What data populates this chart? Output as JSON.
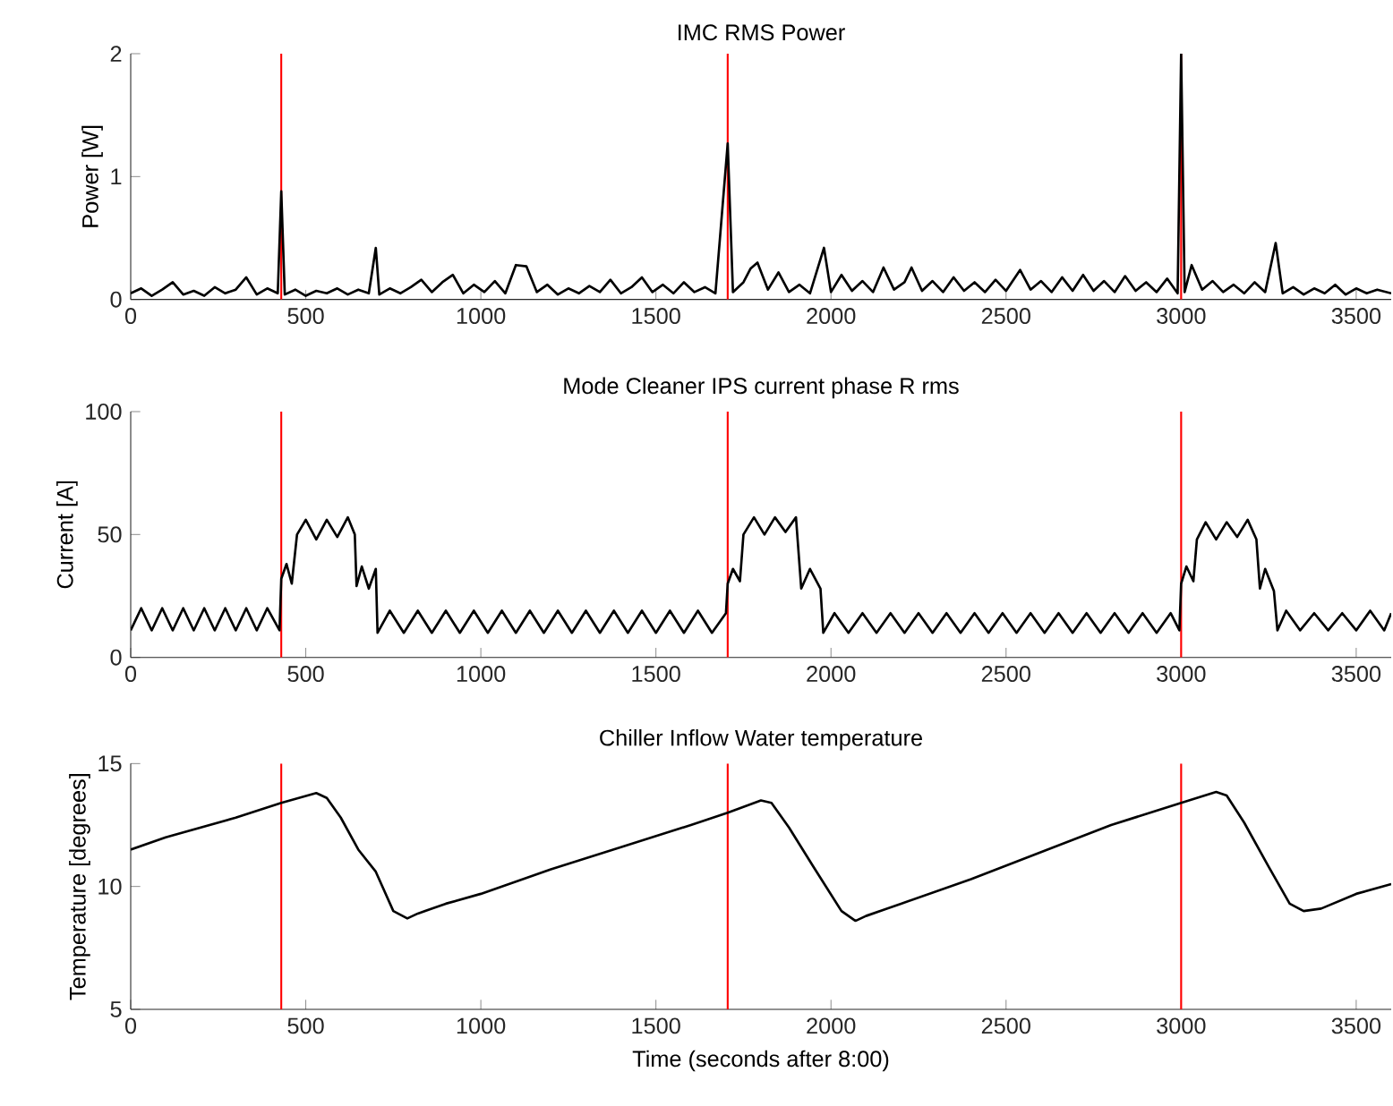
{
  "chart_data": [
    {
      "type": "line",
      "title": "IMC RMS Power",
      "ylabel": "Power [W]",
      "xlim": [
        0,
        3600
      ],
      "ylim": [
        0,
        2
      ],
      "xticks": [
        0,
        500,
        1000,
        1500,
        2000,
        2500,
        3000,
        3500
      ],
      "yticks": [
        0,
        1,
        2
      ],
      "x": [
        0,
        30,
        60,
        90,
        120,
        150,
        180,
        210,
        240,
        270,
        300,
        330,
        360,
        390,
        420,
        430,
        440,
        470,
        500,
        530,
        560,
        590,
        620,
        650,
        680,
        700,
        710,
        740,
        770,
        800,
        830,
        860,
        890,
        920,
        950,
        980,
        1010,
        1040,
        1070,
        1100,
        1130,
        1160,
        1190,
        1220,
        1250,
        1280,
        1310,
        1340,
        1370,
        1400,
        1430,
        1460,
        1490,
        1520,
        1550,
        1580,
        1610,
        1640,
        1670,
        1705,
        1720,
        1750,
        1770,
        1790,
        1820,
        1850,
        1880,
        1910,
        1940,
        1980,
        2000,
        2030,
        2060,
        2090,
        2120,
        2150,
        2180,
        2210,
        2230,
        2260,
        2290,
        2320,
        2350,
        2380,
        2410,
        2440,
        2470,
        2500,
        2540,
        2570,
        2600,
        2630,
        2660,
        2690,
        2720,
        2750,
        2780,
        2810,
        2840,
        2870,
        2900,
        2930,
        2960,
        2990,
        3000,
        3010,
        3030,
        3060,
        3090,
        3120,
        3150,
        3180,
        3210,
        3240,
        3270,
        3290,
        3320,
        3350,
        3380,
        3410,
        3440,
        3470,
        3500,
        3530,
        3560,
        3600
      ],
      "series": [
        {
          "color": "#000000",
          "values": [
            0.05,
            0.09,
            0.03,
            0.08,
            0.14,
            0.04,
            0.07,
            0.03,
            0.1,
            0.05,
            0.08,
            0.18,
            0.04,
            0.09,
            0.05,
            0.88,
            0.04,
            0.08,
            0.03,
            0.07,
            0.05,
            0.09,
            0.04,
            0.08,
            0.05,
            0.42,
            0.04,
            0.09,
            0.05,
            0.1,
            0.16,
            0.06,
            0.14,
            0.2,
            0.05,
            0.12,
            0.06,
            0.15,
            0.05,
            0.28,
            0.27,
            0.06,
            0.12,
            0.04,
            0.09,
            0.05,
            0.11,
            0.06,
            0.16,
            0.05,
            0.1,
            0.18,
            0.06,
            0.12,
            0.05,
            0.14,
            0.06,
            0.1,
            0.05,
            1.27,
            0.06,
            0.14,
            0.25,
            0.3,
            0.08,
            0.22,
            0.06,
            0.12,
            0.05,
            0.42,
            0.06,
            0.2,
            0.07,
            0.15,
            0.06,
            0.26,
            0.08,
            0.14,
            0.26,
            0.07,
            0.15,
            0.06,
            0.18,
            0.07,
            0.14,
            0.06,
            0.16,
            0.07,
            0.24,
            0.08,
            0.15,
            0.06,
            0.18,
            0.07,
            0.2,
            0.07,
            0.15,
            0.06,
            0.19,
            0.07,
            0.14,
            0.06,
            0.17,
            0.05,
            2.0,
            0.06,
            0.28,
            0.08,
            0.15,
            0.06,
            0.12,
            0.05,
            0.14,
            0.06,
            0.46,
            0.05,
            0.1,
            0.04,
            0.09,
            0.05,
            0.12,
            0.04,
            0.09,
            0.05,
            0.08,
            0.05
          ]
        }
      ],
      "ref_lines": [
        {
          "axis": "x",
          "value": 430,
          "color": "#ff0000"
        },
        {
          "axis": "x",
          "value": 1705,
          "color": "#ff0000"
        },
        {
          "axis": "x",
          "value": 3000,
          "color": "#ff0000"
        }
      ]
    },
    {
      "type": "line",
      "title": "Mode Cleaner IPS current phase R rms",
      "ylabel": "Current [A]",
      "xlim": [
        0,
        3600
      ],
      "ylim": [
        0,
        100
      ],
      "xticks": [
        0,
        500,
        1000,
        1500,
        2000,
        2500,
        3000,
        3500
      ],
      "yticks": [
        0,
        50,
        100
      ],
      "x": [
        0,
        30,
        60,
        90,
        120,
        150,
        180,
        210,
        240,
        270,
        300,
        330,
        360,
        390,
        425,
        430,
        445,
        460,
        475,
        500,
        530,
        560,
        590,
        620,
        640,
        645,
        660,
        680,
        700,
        705,
        740,
        780,
        820,
        860,
        900,
        940,
        980,
        1020,
        1060,
        1100,
        1140,
        1180,
        1220,
        1260,
        1300,
        1340,
        1380,
        1420,
        1460,
        1500,
        1540,
        1580,
        1620,
        1660,
        1700,
        1705,
        1720,
        1740,
        1750,
        1780,
        1810,
        1840,
        1870,
        1900,
        1915,
        1940,
        1970,
        1978,
        2010,
        2050,
        2090,
        2130,
        2170,
        2210,
        2250,
        2290,
        2330,
        2370,
        2410,
        2450,
        2490,
        2530,
        2570,
        2610,
        2650,
        2690,
        2730,
        2770,
        2810,
        2850,
        2890,
        2930,
        2970,
        2995,
        3000,
        3015,
        3035,
        3045,
        3070,
        3100,
        3130,
        3160,
        3190,
        3215,
        3225,
        3240,
        3265,
        3275,
        3300,
        3340,
        3380,
        3420,
        3460,
        3500,
        3540,
        3580,
        3600
      ],
      "series": [
        {
          "color": "#000000",
          "values": [
            11,
            20,
            11,
            20,
            11,
            20,
            11,
            20,
            11,
            20,
            11,
            20,
            11,
            20,
            11,
            32,
            38,
            30,
            50,
            56,
            48,
            56,
            49,
            57,
            50,
            29,
            37,
            28,
            36,
            10,
            19,
            10,
            19,
            10,
            19,
            10,
            19,
            10,
            19,
            10,
            19,
            10,
            19,
            10,
            19,
            10,
            19,
            10,
            19,
            10,
            19,
            10,
            19,
            10,
            18,
            30,
            36,
            31,
            50,
            57,
            50,
            57,
            51,
            57,
            28,
            36,
            28,
            10,
            18,
            10,
            18,
            10,
            18,
            10,
            18,
            10,
            18,
            10,
            18,
            10,
            18,
            10,
            18,
            10,
            18,
            10,
            18,
            10,
            18,
            10,
            18,
            10,
            18,
            11,
            30,
            37,
            31,
            48,
            55,
            48,
            55,
            49,
            56,
            48,
            28,
            36,
            27,
            11,
            19,
            11,
            18,
            11,
            18,
            11,
            19,
            11,
            18
          ]
        }
      ],
      "ref_lines": [
        {
          "axis": "x",
          "value": 430,
          "color": "#ff0000"
        },
        {
          "axis": "x",
          "value": 1705,
          "color": "#ff0000"
        },
        {
          "axis": "x",
          "value": 3000,
          "color": "#ff0000"
        }
      ]
    },
    {
      "type": "line",
      "title": "Chiller Inflow Water temperature",
      "xlabel": "Time (seconds after 8:00)",
      "ylabel": "Temperature [degrees]",
      "xlim": [
        0,
        3600
      ],
      "ylim": [
        5,
        15
      ],
      "xticks": [
        0,
        500,
        1000,
        1500,
        2000,
        2500,
        3000,
        3500
      ],
      "yticks": [
        5,
        10,
        15
      ],
      "x": [
        0,
        100,
        200,
        300,
        430,
        530,
        560,
        600,
        650,
        700,
        750,
        790,
        820,
        900,
        1000,
        1200,
        1400,
        1600,
        1705,
        1800,
        1830,
        1880,
        1950,
        2030,
        2070,
        2100,
        2200,
        2400,
        2600,
        2800,
        3000,
        3100,
        3130,
        3180,
        3250,
        3310,
        3350,
        3400,
        3500,
        3600
      ],
      "series": [
        {
          "color": "#000000",
          "values": [
            11.5,
            12.0,
            12.4,
            12.8,
            13.4,
            13.8,
            13.6,
            12.8,
            11.5,
            10.6,
            9.0,
            8.7,
            8.9,
            9.3,
            9.7,
            10.7,
            11.6,
            12.5,
            13.0,
            13.5,
            13.4,
            12.4,
            10.8,
            9.0,
            8.6,
            8.8,
            9.3,
            10.3,
            11.4,
            12.5,
            13.4,
            13.85,
            13.7,
            12.6,
            10.8,
            9.3,
            9.0,
            9.1,
            9.7,
            10.1
          ]
        }
      ],
      "ref_lines": [
        {
          "axis": "x",
          "value": 430,
          "color": "#ff0000"
        },
        {
          "axis": "x",
          "value": 1705,
          "color": "#ff0000"
        },
        {
          "axis": "x",
          "value": 3000,
          "color": "#ff0000"
        }
      ]
    }
  ]
}
